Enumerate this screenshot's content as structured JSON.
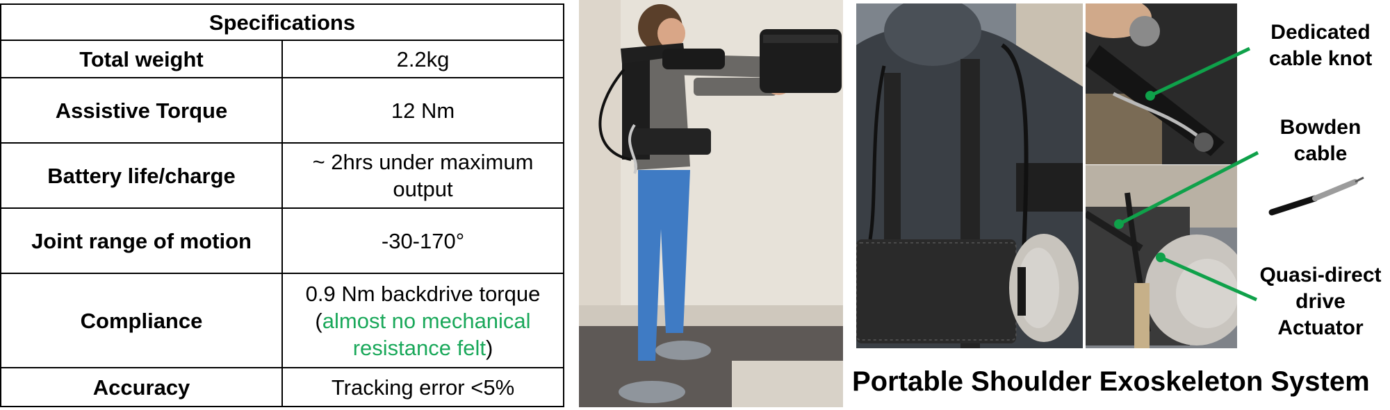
{
  "table": {
    "header": "Specifications",
    "rows": [
      {
        "label": "Total weight",
        "value": "2.2kg"
      },
      {
        "label": "Assistive Torque",
        "value": "12 Nm"
      },
      {
        "label": "Battery life/charge",
        "value": "~ 2hrs under maximum output"
      },
      {
        "label": "Joint range of motion",
        "value": "-30-170°"
      },
      {
        "label": "Compliance",
        "value_line1": "0.9 Nm backdrive torque",
        "value_open": "(",
        "value_green": "almost no mechanical resistance felt",
        "value_close": ")"
      },
      {
        "label": "Accuracy",
        "value": "Tracking error <5%"
      }
    ],
    "accent_color": "#1aa85a"
  },
  "callouts": {
    "knot": "Dedicated cable knot",
    "bowden": "Bowden cable",
    "actuator": "Quasi-direct drive Actuator",
    "line_color": "#0fa14a"
  },
  "caption": "Portable Shoulder Exoskeleton System"
}
